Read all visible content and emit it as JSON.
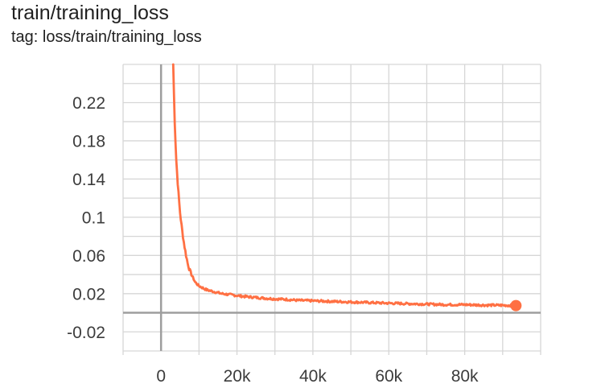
{
  "chart_data": {
    "type": "line",
    "title": "train/training_loss",
    "subtitle": "tag: loss/train/training_loss",
    "xlabel": "",
    "ylabel": "",
    "xlim": [
      -10000,
      100000
    ],
    "ylim": [
      -0.04,
      0.26
    ],
    "x_ticks": [
      0,
      20000,
      40000,
      60000,
      80000
    ],
    "x_tick_labels": [
      "0",
      "20k",
      "40k",
      "60k",
      "80k"
    ],
    "y_ticks": [
      -0.02,
      0.02,
      0.06,
      0.1,
      0.14,
      0.18,
      0.22
    ],
    "y_tick_labels": [
      "-0.02",
      "0.02",
      "0.06",
      "0.1",
      "0.14",
      "0.18",
      "0.22"
    ],
    "grid": true,
    "series": [
      {
        "color": "#ff7043",
        "x": [
          3200,
          3600,
          4000,
          4500,
          5000,
          5500,
          6000,
          6500,
          7000,
          7500,
          8000,
          8500,
          9000,
          9500,
          10000,
          11000,
          12000,
          13000,
          14000,
          15000,
          16000,
          18000,
          20000,
          22000,
          25000,
          28000,
          30000,
          33000,
          36000,
          40000,
          44000,
          48000,
          52000,
          56000,
          60000,
          65000,
          70000,
          75000,
          80000,
          85000,
          90000,
          93500
        ],
        "y": [
          0.26,
          0.2,
          0.16,
          0.13,
          0.105,
          0.088,
          0.074,
          0.062,
          0.052,
          0.045,
          0.04,
          0.036,
          0.032,
          0.03,
          0.028,
          0.026,
          0.024,
          0.023,
          0.022,
          0.021,
          0.02,
          0.019,
          0.018,
          0.017,
          0.016,
          0.015,
          0.0145,
          0.014,
          0.013,
          0.0125,
          0.012,
          0.0115,
          0.011,
          0.0105,
          0.01,
          0.0095,
          0.009,
          0.0085,
          0.0085,
          0.008,
          0.0078,
          0.0075
        ]
      }
    ]
  },
  "colors": {
    "line": "#ff7043",
    "grid": "#d6d6d6",
    "axis": "#9e9e9e"
  }
}
